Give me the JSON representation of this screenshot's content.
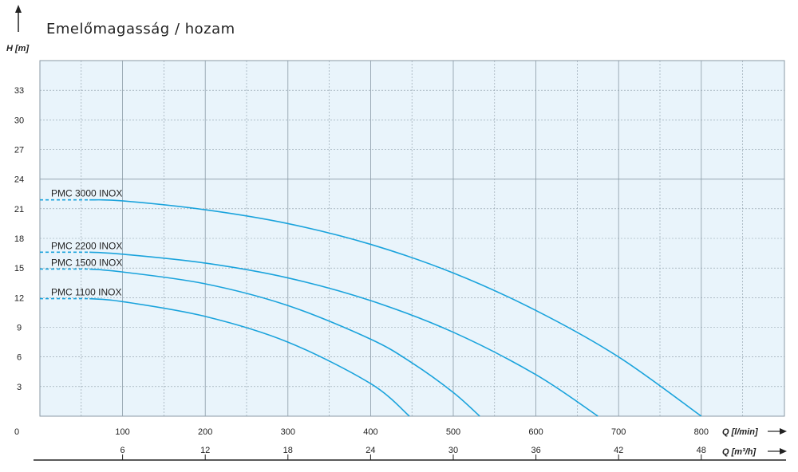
{
  "colors": {
    "plot_background": "#e9f4fb",
    "grid_major": "#8a9aa6",
    "grid_minor": "#8a9aa6",
    "curve": "#1aa3dc",
    "axis": "#222222"
  },
  "chart_data": {
    "type": "line",
    "title": "Emelőmagasság / hozam",
    "ylabel": "H [m]",
    "xlabel": "Q [l/min]",
    "xlabel2": "Q [m³/h]",
    "xlim": [
      0,
      1000
    ],
    "ylim": [
      0,
      36
    ],
    "y_ticks": [
      3,
      6,
      9,
      12,
      15,
      18,
      21,
      24,
      27,
      30,
      33
    ],
    "x_ticks": [
      100,
      200,
      300,
      400,
      500,
      600,
      700,
      800
    ],
    "x_ticks2": [
      6,
      12,
      18,
      24,
      30,
      36,
      42,
      48
    ],
    "origin_label": "0",
    "grid": true,
    "series": [
      {
        "name": "PMC 3000 INOX",
        "x": [
          60,
          100,
          200,
          300,
          400,
          500,
          600,
          700,
          800
        ],
        "y": [
          21.9,
          21.8,
          20.9,
          19.5,
          17.4,
          14.5,
          10.7,
          6.0,
          0
        ]
      },
      {
        "name": "PMC 2200 INOX",
        "x": [
          60,
          100,
          200,
          300,
          400,
          500,
          600,
          675
        ],
        "y": [
          16.6,
          16.4,
          15.5,
          14.0,
          11.7,
          8.5,
          4.2,
          0
        ]
      },
      {
        "name": "PMC 1500 INOX",
        "x": [
          60,
          100,
          200,
          300,
          400,
          450,
          500,
          532
        ],
        "y": [
          14.9,
          14.6,
          13.4,
          11.2,
          7.8,
          5.4,
          2.4,
          0
        ]
      },
      {
        "name": "PMC 1100 INOX",
        "x": [
          60,
          100,
          200,
          300,
          400,
          447
        ],
        "y": [
          11.9,
          11.6,
          10.1,
          7.5,
          3.3,
          0
        ]
      }
    ]
  }
}
